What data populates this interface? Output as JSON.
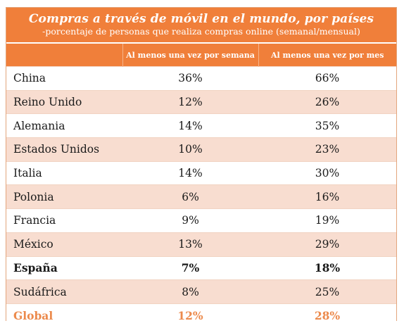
{
  "chart_data": {
    "type": "table",
    "title": "Compras a través de móvil en el mundo, por países",
    "subtitle": "-porcentaje de personas que realiza compras online (semanal/mensual)",
    "columns": [
      "",
      "Al menos una vez por semana",
      "Al menos una vez por mes"
    ],
    "rows": [
      {
        "country": "China",
        "weekly": "36%",
        "monthly": "66%",
        "style": "normal"
      },
      {
        "country": "Reino Unido",
        "weekly": "12%",
        "monthly": "26%",
        "style": "normal"
      },
      {
        "country": "Alemania",
        "weekly": "14%",
        "monthly": "35%",
        "style": "normal"
      },
      {
        "country": "Estados Unidos",
        "weekly": "10%",
        "monthly": "23%",
        "style": "normal"
      },
      {
        "country": "Italia",
        "weekly": "14%",
        "monthly": "30%",
        "style": "normal"
      },
      {
        "country": "Polonia",
        "weekly": "6%",
        "monthly": "16%",
        "style": "normal"
      },
      {
        "country": "Francia",
        "weekly": "9%",
        "monthly": "19%",
        "style": "normal"
      },
      {
        "country": "México",
        "weekly": "13%",
        "monthly": "29%",
        "style": "normal"
      },
      {
        "country": "España",
        "weekly": "7%",
        "monthly": "18%",
        "style": "bold"
      },
      {
        "country": "Sudáfrica",
        "weekly": "8%",
        "monthly": "25%",
        "style": "normal"
      },
      {
        "country": "Global",
        "weekly": "12%",
        "monthly": "28%",
        "style": "global"
      }
    ],
    "colors": {
      "header": "#f07f3a",
      "band": "#f8ddd0",
      "global_text": "#ec8a4c"
    }
  }
}
